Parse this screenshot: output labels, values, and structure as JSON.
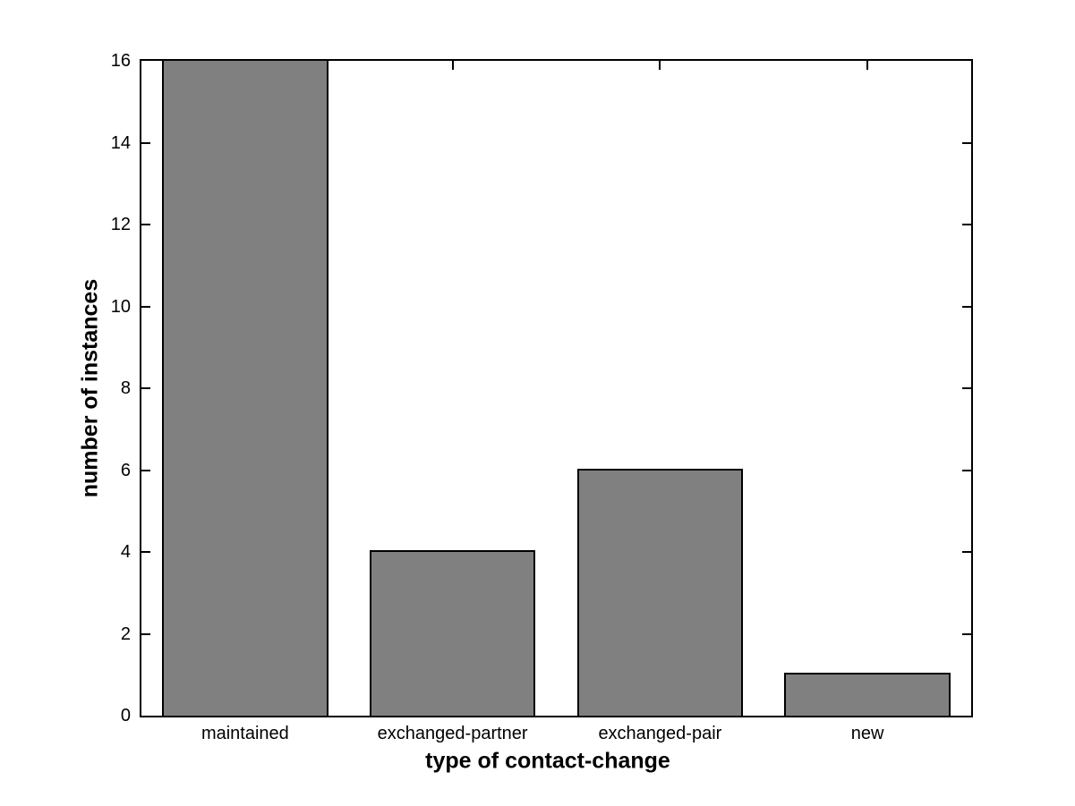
{
  "figure": {
    "background": "#ffffff"
  },
  "chart_data": {
    "type": "bar",
    "categories": [
      "maintained",
      "exchanged-partner",
      "exchanged-pair",
      "new"
    ],
    "values": [
      16,
      4,
      6,
      1
    ],
    "title": "",
    "xlabel": "type of contact-change",
    "ylabel": "number of instances",
    "ylim": [
      0,
      16
    ],
    "yticks": [
      0,
      2,
      4,
      6,
      8,
      10,
      12,
      14,
      16
    ],
    "grid": false,
    "legend": null,
    "bar_fill_color": "#808080",
    "bar_edge_color": "#000000",
    "axis_color": "#000000",
    "plot_background": "#ffffff",
    "bar_width_fraction": 0.8
  }
}
